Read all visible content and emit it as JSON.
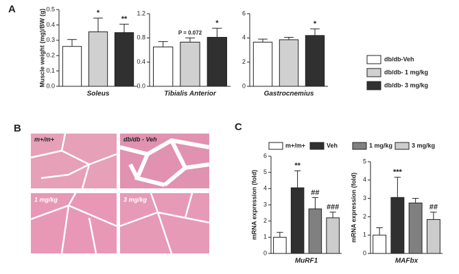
{
  "panel_labels": [
    "A",
    "B",
    "C"
  ],
  "histology": [
    "m+/m+",
    "db/db - Veh",
    "1 mg/kg",
    "3 mg/kg"
  ],
  "chart_data": [
    {
      "type": "bar",
      "xlabel": "Soleus",
      "ylabel": "Muscle weight (mg)/BW (g)",
      "values": [
        0.26,
        0.355,
        0.35
      ],
      "errors": [
        0.045,
        0.09,
        0.055
      ],
      "annotations": [
        null,
        "*",
        "**"
      ],
      "ylim": [
        0,
        0.5
      ],
      "yticks": [
        {
          "value": 0,
          "label": "0.0"
        },
        {
          "value": 0.1,
          "label": "0.1"
        },
        {
          "value": 0.2,
          "label": "0.2"
        },
        {
          "value": 0.3,
          "label": "0.3"
        },
        {
          "value": 0.4,
          "label": "0.4"
        },
        {
          "value": 0.5,
          "label": "0.5"
        }
      ]
    },
    {
      "type": "bar",
      "xlabel": "Tibialis Anterior",
      "values": [
        0.65,
        0.73,
        0.81
      ],
      "errors": [
        0.09,
        0.07,
        0.15
      ],
      "annotations": [
        null,
        "P = 0.072",
        "*"
      ],
      "ylim": [
        0,
        1.2
      ],
      "yticks": [
        {
          "value": 0,
          "label": "0.0"
        },
        {
          "value": 0.4,
          "label": "0.4"
        },
        {
          "value": 0.8,
          "label": "0.8"
        },
        {
          "value": 1.2,
          "label": "1.2"
        }
      ]
    },
    {
      "type": "bar",
      "xlabel": "Gastrocnemius",
      "values": [
        3.65,
        3.85,
        4.2
      ],
      "errors": [
        0.25,
        0.2,
        0.55
      ],
      "annotations": [
        null,
        null,
        "*"
      ],
      "ylim": [
        0,
        6
      ],
      "yticks": [
        0,
        2,
        4,
        6
      ],
      "legend": [
        {
          "name": "db/db-Veh",
          "color": "#ffffff"
        },
        {
          "name": "db/db- 1 mg/kg",
          "color": "#d0d0d0"
        },
        {
          "name": "db/db- 3 mg/kg",
          "color": "#303030"
        }
      ]
    },
    {
      "type": "bar",
      "xlabel": "MuRF1",
      "ylabel": "mRNA expression (fold)",
      "values": [
        1,
        4.05,
        2.75,
        2.2
      ],
      "errors": [
        0.3,
        1.05,
        0.7,
        0.35
      ],
      "annotations": [
        null,
        "**",
        "##",
        "###"
      ],
      "ylim": [
        0,
        6
      ],
      "yticks": [
        0,
        1,
        2,
        3,
        4,
        5,
        6
      ],
      "legend": [
        {
          "name": "m+/m+",
          "color": "#ffffff"
        },
        {
          "name": "Veh",
          "color": "#303030"
        },
        {
          "name": "1 mg/kg",
          "color": "#808080"
        },
        {
          "name": "3 mg/kg",
          "color": "#cccccc"
        }
      ]
    },
    {
      "type": "bar",
      "xlabel": "MAFbx",
      "ylabel": "mRNA expression (fold)",
      "values": [
        1,
        3.05,
        2.75,
        1.85
      ],
      "errors": [
        0.4,
        1.1,
        0.25,
        0.4
      ],
      "annotations": [
        null,
        "***",
        null,
        "##"
      ],
      "ylim": [
        0,
        5
      ],
      "yticks": [
        0,
        1,
        2,
        3,
        4,
        5
      ]
    }
  ]
}
